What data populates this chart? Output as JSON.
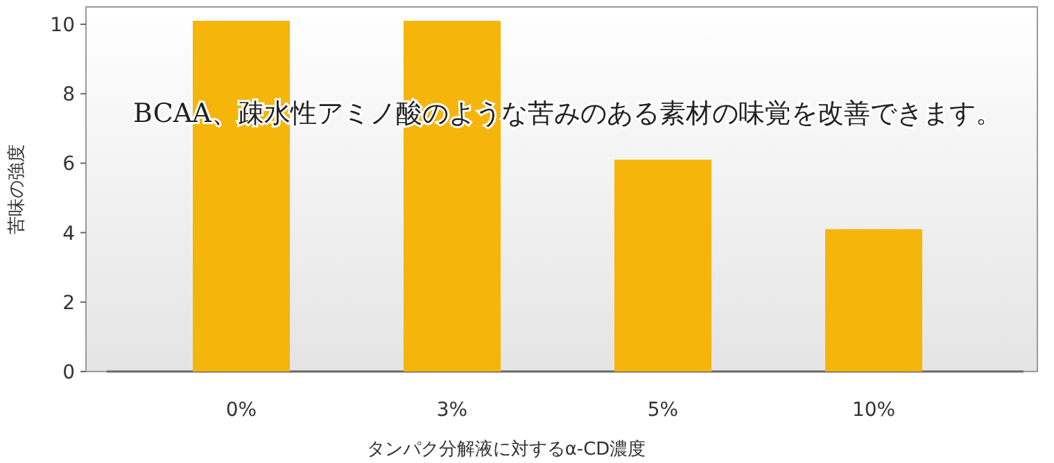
{
  "chart_data": {
    "type": "bar",
    "xlabel": "タンパク分解液に対するα-CD濃度",
    "ylabel": "苦味の強度",
    "categories": [
      "0%",
      "3%",
      "5%",
      "10%"
    ],
    "values": [
      10.1,
      10.1,
      6.1,
      4.1
    ],
    "color": "#f5b50a",
    "ylim": [
      0,
      10.5
    ],
    "yticks": [
      0,
      2,
      4,
      6,
      8,
      10
    ],
    "grid": false,
    "annotations": [
      "BCAA、疎水性アミノ酸のような苦みのある素材の味覚を改善できます。"
    ]
  }
}
